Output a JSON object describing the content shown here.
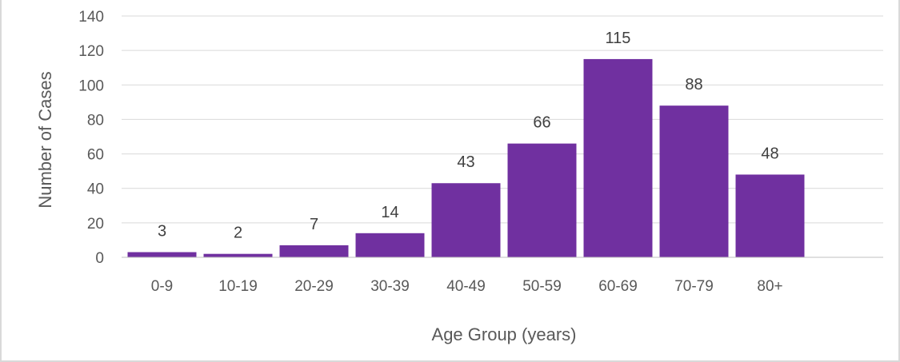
{
  "chart_data": {
    "type": "bar",
    "categories": [
      "0-9",
      "10-19",
      "20-29",
      "30-39",
      "40-49",
      "50-59",
      "60-69",
      "70-79",
      "80+"
    ],
    "values": [
      3,
      2,
      7,
      14,
      43,
      66,
      115,
      88,
      48
    ],
    "xlabel": "Age Group (years)",
    "ylabel": "Number of Cases",
    "ylim": [
      0,
      140
    ],
    "yticks": [
      0,
      20,
      40,
      60,
      80,
      100,
      120,
      140
    ],
    "bar_color": "#7030a0",
    "grid": true,
    "data_labels": true,
    "legend": "none"
  }
}
